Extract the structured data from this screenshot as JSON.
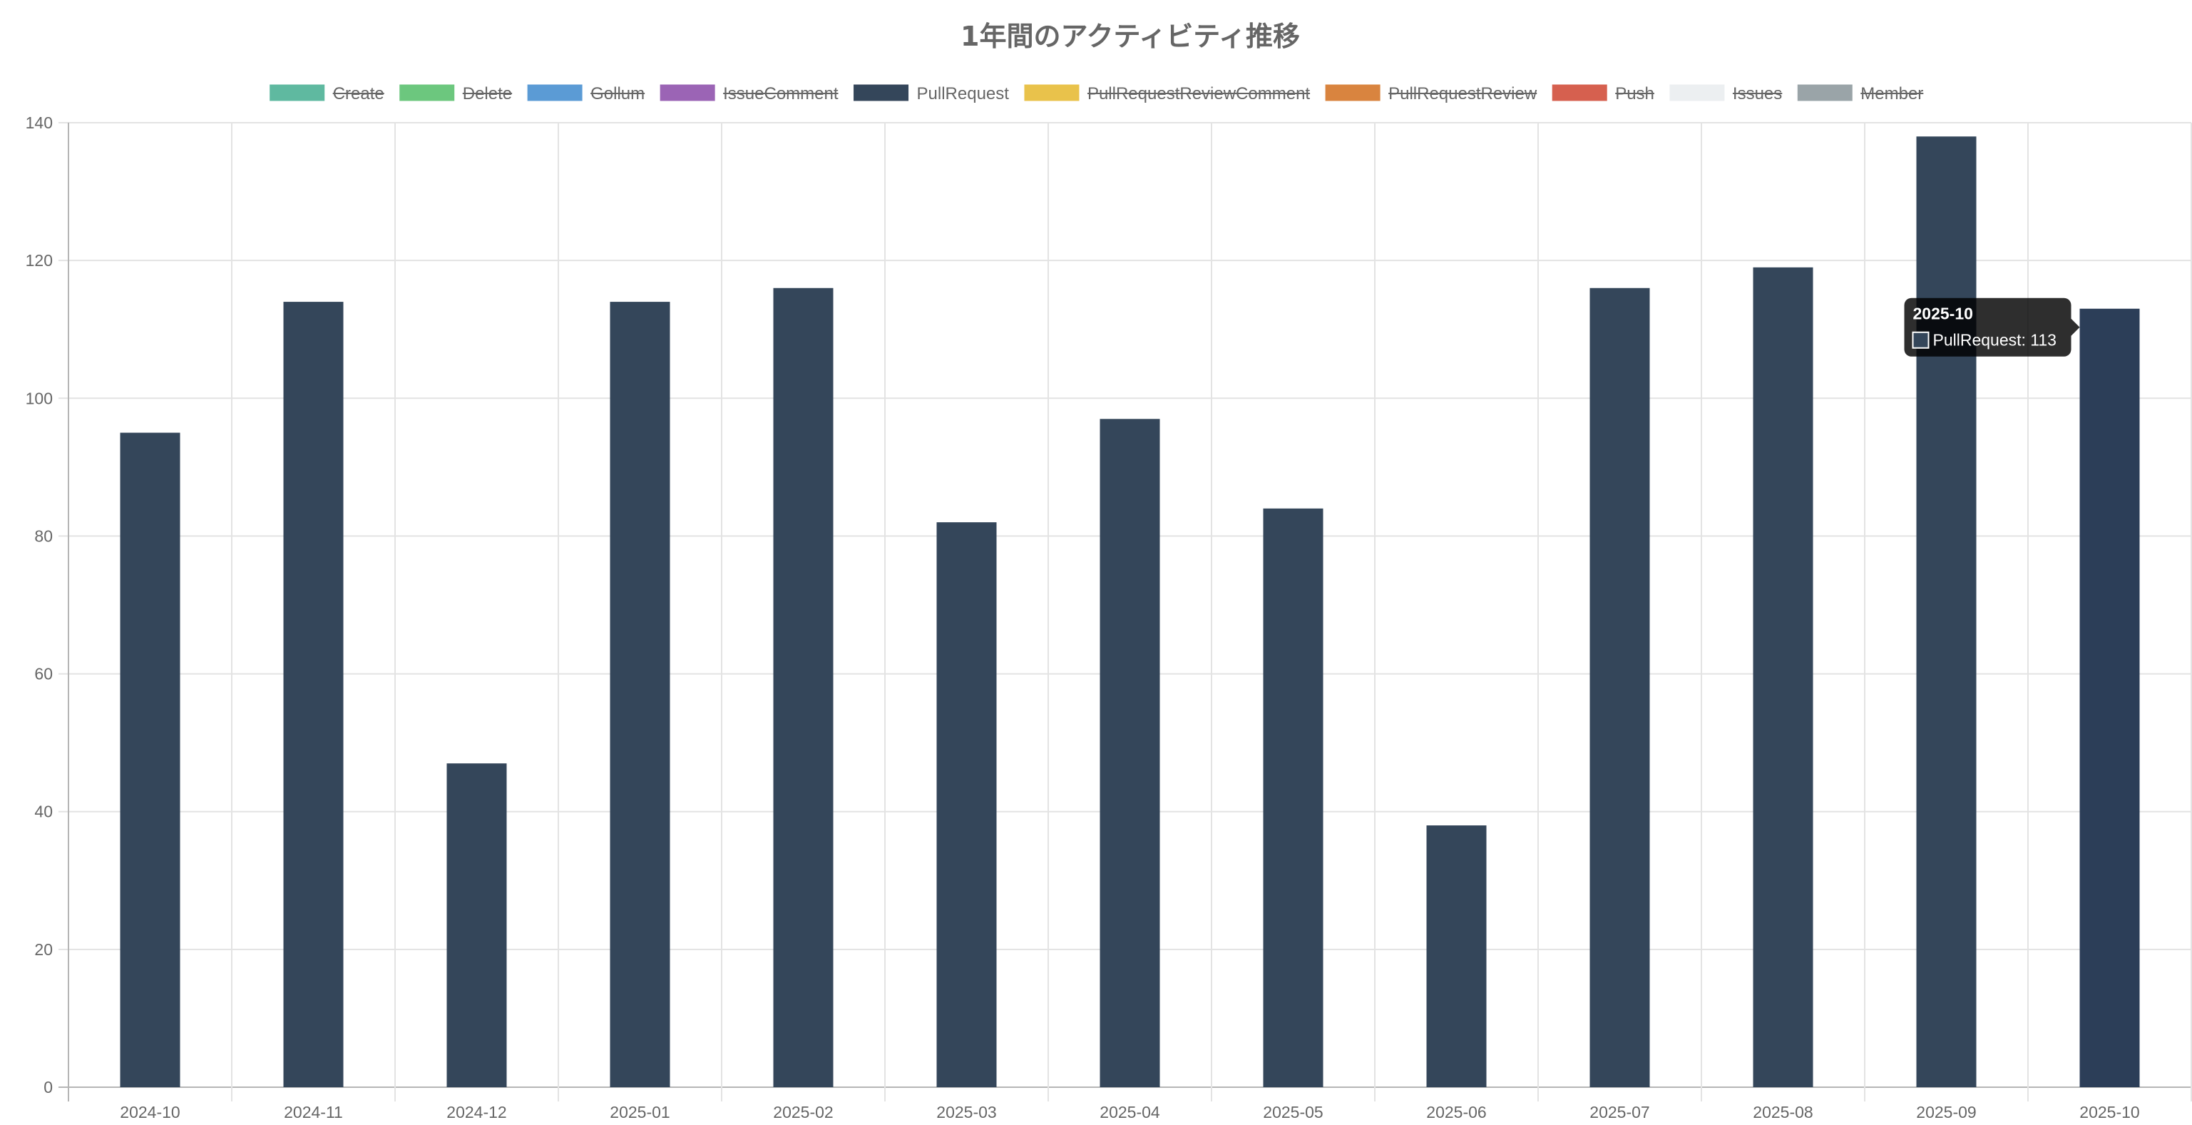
{
  "chart_data": {
    "type": "bar",
    "title": "1年間のアクティビティ推移",
    "xlabel": "",
    "ylabel": "",
    "ylim": [
      0,
      140
    ],
    "y_ticks": [
      0,
      20,
      40,
      60,
      80,
      100,
      120,
      140
    ],
    "grid": true,
    "legend_position": "top",
    "categories": [
      "2024-10",
      "2024-11",
      "2024-12",
      "2025-01",
      "2025-02",
      "2025-03",
      "2025-04",
      "2025-05",
      "2025-06",
      "2025-07",
      "2025-08",
      "2025-09",
      "2025-10"
    ],
    "legend": [
      {
        "name": "Create",
        "color": "#5fb9a0",
        "hidden": true
      },
      {
        "name": "Delete",
        "color": "#6cc77e",
        "hidden": true
      },
      {
        "name": "Gollum",
        "color": "#5b9bd5",
        "hidden": true
      },
      {
        "name": "IssueComment",
        "color": "#9b64b5",
        "hidden": true
      },
      {
        "name": "PullRequest",
        "color": "#34465a",
        "hidden": false
      },
      {
        "name": "PullRequestReviewComment",
        "color": "#e9c24b",
        "hidden": true
      },
      {
        "name": "PullRequestReview",
        "color": "#d9843f",
        "hidden": true
      },
      {
        "name": "Push",
        "color": "#d6604f",
        "hidden": true
      },
      {
        "name": "Issues",
        "color": "#eceff1",
        "hidden": true
      },
      {
        "name": "Member",
        "color": "#9aa4a8",
        "hidden": true
      }
    ],
    "series": [
      {
        "name": "PullRequest",
        "color": "#34465a",
        "values": [
          95,
          114,
          47,
          114,
          116,
          82,
          97,
          84,
          38,
          116,
          119,
          138,
          113
        ]
      }
    ],
    "tooltip": {
      "title": "2025-10",
      "text": "PullRequest: 113",
      "category_index": 12,
      "series_index": 0
    }
  }
}
